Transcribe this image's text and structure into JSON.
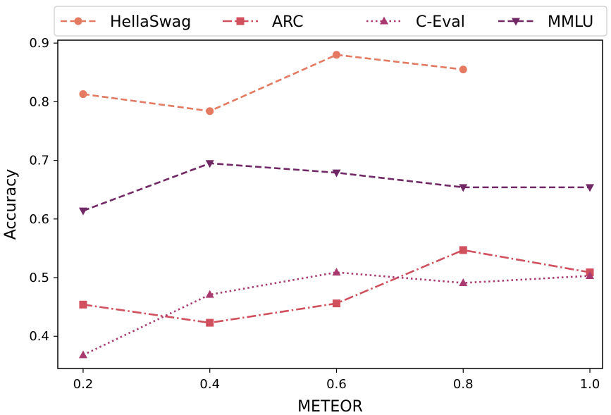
{
  "chart_data": {
    "type": "line",
    "xlabel": "METEOR",
    "ylabel": "Accuracy",
    "xlim": [
      0.16,
      1.02
    ],
    "ylim": [
      0.345,
      0.905
    ],
    "xticks": [
      "0.2",
      "0.4",
      "0.6",
      "0.8",
      "1.0"
    ],
    "yticks": [
      "0.4",
      "0.5",
      "0.6",
      "0.7",
      "0.8",
      "0.9"
    ],
    "legend_position": "top, outside",
    "grid": false,
    "series": [
      {
        "name": "HellaSwag",
        "color": "#e47a62",
        "marker": "circle",
        "line_style": "dashed",
        "points": [
          [
            0.2,
            0.813
          ],
          [
            0.4,
            0.784
          ],
          [
            0.6,
            0.88
          ],
          [
            0.8,
            0.855
          ]
        ]
      },
      {
        "name": "ARC",
        "color": "#d0505e",
        "marker": "square",
        "line_style": "dash-dot",
        "points": [
          [
            0.2,
            0.454
          ],
          [
            0.4,
            0.423
          ],
          [
            0.6,
            0.456
          ],
          [
            0.8,
            0.547
          ],
          [
            1.0,
            0.509
          ]
        ]
      },
      {
        "name": "C-Eval",
        "color": "#a83a70",
        "marker": "triangle-up",
        "line_style": "dotted",
        "points": [
          [
            0.2,
            0.368
          ],
          [
            0.4,
            0.471
          ],
          [
            0.6,
            0.509
          ],
          [
            0.8,
            0.491
          ],
          [
            1.0,
            0.503
          ]
        ]
      },
      {
        "name": "MMLU",
        "color": "#712965",
        "marker": "triangle-down",
        "line_style": "dashed",
        "points": [
          [
            0.2,
            0.614
          ],
          [
            0.4,
            0.695
          ],
          [
            0.6,
            0.679
          ],
          [
            0.8,
            0.654
          ],
          [
            1.0,
            0.654
          ]
        ]
      }
    ]
  }
}
